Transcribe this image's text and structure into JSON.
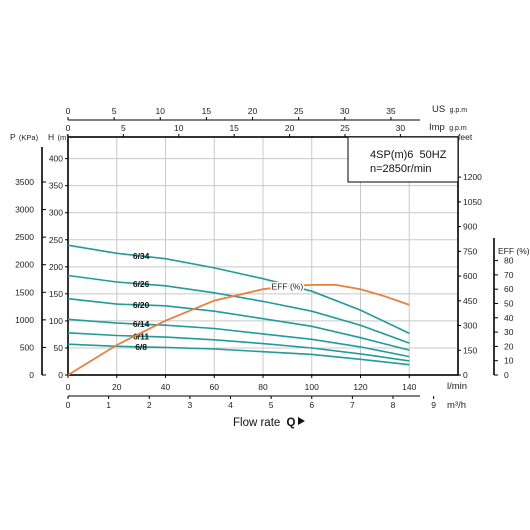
{
  "chart_data": {
    "type": "line",
    "model": "4SP(m)6  50HZ",
    "speed": "n=2850r/min",
    "xlabel": "Flow rate",
    "xlabel_symbol": "Q",
    "axes": {
      "lpm": {
        "unit": "l/min",
        "min": 0,
        "max": 160,
        "ticks": [
          0,
          20,
          40,
          60,
          80,
          100,
          120,
          140
        ]
      },
      "m3h": {
        "unit": "m³/h",
        "min": 0,
        "max": 9.6,
        "ticks": [
          0,
          1,
          2,
          3,
          4,
          5,
          6,
          7,
          8,
          9
        ]
      },
      "us": {
        "unit": "US",
        "unit_sub": "g.p.m",
        "max": 42.27,
        "ticks": [
          0,
          5,
          10,
          15,
          20,
          25,
          30,
          35
        ]
      },
      "imp": {
        "unit": "Imp",
        "unit_sub": "g.p.m",
        "max": 35.2,
        "ticks": [
          0,
          5,
          10,
          15,
          20,
          25,
          30
        ]
      },
      "head": {
        "unit": "H",
        "unit_sub": "(m)",
        "min": 0,
        "max": 440,
        "ticks": [
          0,
          50,
          100,
          150,
          200,
          250,
          300,
          350,
          400
        ]
      },
      "pressure": {
        "unit": "P",
        "unit_sub": "(KPa)",
        "ticks": [
          0,
          500,
          1000,
          1500,
          2000,
          2500,
          3000,
          3500
        ]
      },
      "feet": {
        "unit": "feet",
        "ticks": [
          0,
          150,
          300,
          450,
          600,
          750,
          900,
          1050,
          1200
        ]
      },
      "eff": {
        "unit": "EFF (%)",
        "ticks": [
          0,
          10,
          20,
          30,
          40,
          50,
          60,
          70,
          80
        ]
      }
    },
    "series": [
      {
        "name": "6/34",
        "x": [
          0,
          20,
          40,
          60,
          80,
          100,
          120,
          140
        ],
        "y": [
          240,
          225,
          215,
          198,
          178,
          155,
          120,
          77
        ]
      },
      {
        "name": "6/26",
        "x": [
          0,
          20,
          40,
          60,
          80,
          100,
          120,
          140
        ],
        "y": [
          184,
          172,
          165,
          152,
          136,
          118,
          92,
          59
        ]
      },
      {
        "name": "6/20",
        "x": [
          0,
          20,
          40,
          60,
          80,
          100,
          120,
          140
        ],
        "y": [
          141,
          131,
          128,
          118,
          104,
          90,
          69,
          46
        ]
      },
      {
        "name": "6/14",
        "x": [
          0,
          20,
          40,
          60,
          80,
          100,
          120,
          140
        ],
        "y": [
          103,
          96,
          92,
          86,
          76,
          66,
          52,
          34
        ]
      },
      {
        "name": "6/11",
        "x": [
          0,
          20,
          40,
          60,
          80,
          100,
          120,
          140
        ],
        "y": [
          78,
          73,
          70,
          65,
          58,
          50,
          39,
          26
        ]
      },
      {
        "name": "6/8",
        "x": [
          0,
          20,
          40,
          60,
          80,
          100,
          120,
          140
        ],
        "y": [
          57,
          53,
          51,
          48,
          43,
          38,
          29,
          19
        ]
      }
    ],
    "efficiency": {
      "name": "EFF (%)",
      "x": [
        0,
        20,
        40,
        60,
        80,
        90,
        100,
        110,
        120,
        130,
        140
      ],
      "y": [
        0,
        21,
        38,
        52,
        60,
        62,
        63,
        63,
        60,
        55,
        49
      ]
    },
    "curve_label_x": 30,
    "colors": {
      "pump_curve": "#219b9b",
      "efficiency": "#e87f3c",
      "axis": "#000000",
      "grid": "#c8c8c8"
    }
  }
}
